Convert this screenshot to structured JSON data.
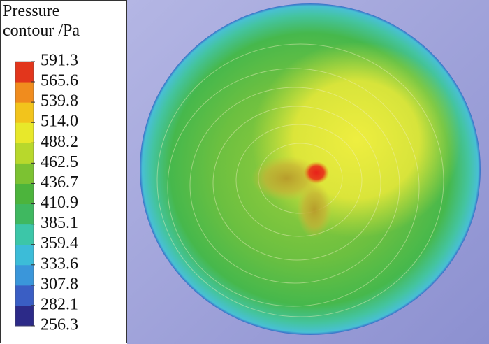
{
  "chart_data": {
    "type": "contour",
    "title": "Pressure contour /Pa",
    "clim": [
      256.3,
      591.3
    ],
    "cticks": [
      591.3,
      565.6,
      539.8,
      {
        "value": 514,
        "label": "514.0"
      },
      488.2,
      462.5,
      436.7,
      410.9,
      385.1,
      359.4,
      333.6,
      307.8,
      282.1,
      256.3
    ],
    "colormap": [
      "#2c2a88",
      "#3a5ec4",
      "#3a96da",
      "#3cbcd8",
      "#3cc6a8",
      "#3fb860",
      "#4cb43c",
      "#7cc232",
      "#b8d82c",
      "#e8e82a",
      "#f2c41c",
      "#f08c1e",
      "#e2361c"
    ]
  }
}
